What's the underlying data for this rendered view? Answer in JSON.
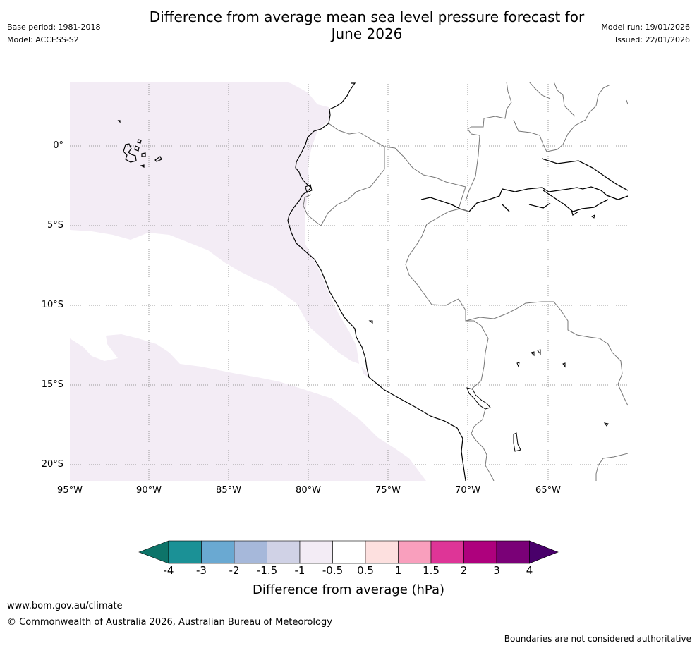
{
  "header": {
    "title_line1": "Difference from average mean sea level pressure forecast for",
    "title_line2": "June 2026",
    "base_period": "Base period: 1981-2018",
    "model": "Model: ACCESS-S2",
    "model_run": "Model run: 19/01/2026",
    "issued": "Issued: 22/01/2026"
  },
  "map": {
    "lat_labels": [
      "0°",
      "5°S",
      "10°S",
      "15°S",
      "20°S"
    ],
    "lon_labels": [
      "95°W",
      "90°W",
      "85°W",
      "80°W",
      "75°W",
      "70°W",
      "65°W"
    ],
    "anomaly_category": "-0.5 to -1 hPa",
    "colors": {
      "anomaly_fill": "#f3ecf5",
      "coastline": "#000000",
      "border": "#777777",
      "grid": "#999999"
    }
  },
  "colorbar": {
    "label": "Difference from average (hPa)",
    "ticks": [
      "-4",
      "-3",
      "-2",
      "-1.5",
      "-1",
      "-0.5",
      "0.5",
      "1",
      "1.5",
      "2",
      "3",
      "4"
    ],
    "colors": [
      "#0d7469",
      "#1b9196",
      "#6aa9d2",
      "#a6b8da",
      "#d0d2e6",
      "#f3ecf5",
      "#ffffff",
      "#fde0df",
      "#f99fbd",
      "#de3597",
      "#ae017d",
      "#7a0177",
      "#49006a"
    ]
  },
  "footer": {
    "url": "www.bom.gov.au/climate",
    "copyright": "© Commonwealth of Australia 2026, Australian Bureau of Meteorology",
    "disclaimer": "Boundaries are not considered authoritative"
  }
}
